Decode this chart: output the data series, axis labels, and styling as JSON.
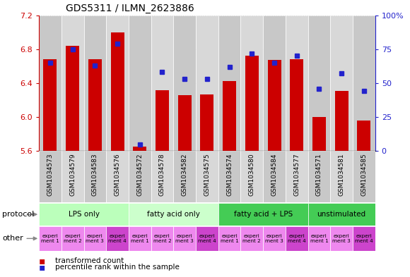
{
  "title": "GDS5311 / ILMN_2623886",
  "samples": [
    "GSM1034573",
    "GSM1034579",
    "GSM1034583",
    "GSM1034576",
    "GSM1034572",
    "GSM1034578",
    "GSM1034582",
    "GSM1034575",
    "GSM1034574",
    "GSM1034580",
    "GSM1034584",
    "GSM1034577",
    "GSM1034571",
    "GSM1034581",
    "GSM1034585"
  ],
  "transformed_counts": [
    6.68,
    6.84,
    6.68,
    7.0,
    5.65,
    6.32,
    6.26,
    6.27,
    6.42,
    6.72,
    6.67,
    6.68,
    6.0,
    6.31,
    5.96
  ],
  "percentile_ranks": [
    65,
    75,
    63,
    79,
    5,
    58,
    53,
    53,
    62,
    72,
    65,
    70,
    46,
    57,
    44
  ],
  "ylim_left": [
    5.6,
    7.2
  ],
  "ylim_right": [
    0,
    100
  ],
  "yticks_left": [
    5.6,
    6.0,
    6.4,
    6.8,
    7.2
  ],
  "yticks_right": [
    0,
    25,
    50,
    75,
    100
  ],
  "protocol_groups": [
    {
      "label": "LPS only",
      "start": 0,
      "end": 4,
      "color": "#bbffbb"
    },
    {
      "label": "fatty acid only",
      "start": 4,
      "end": 8,
      "color": "#ccffcc"
    },
    {
      "label": "fatty acid + LPS",
      "start": 8,
      "end": 12,
      "color": "#44cc55"
    },
    {
      "label": "unstimulated",
      "start": 12,
      "end": 15,
      "color": "#44cc55"
    }
  ],
  "exp_labels": [
    "experi\nment 1",
    "experi\nment 2",
    "experi\nment 3",
    "experi\nment 4",
    "experi\nment 1",
    "experi\nment 2",
    "experi\nment 3",
    "experi\nment 4",
    "experi\nment 1",
    "experi\nment 2",
    "experi\nment 3",
    "experi\nment 4",
    "experi\nment 1",
    "experi\nment 3",
    "experi\nment 4"
  ],
  "exp_is_4": [
    false,
    false,
    false,
    true,
    false,
    false,
    false,
    true,
    false,
    false,
    false,
    true,
    false,
    false,
    true
  ],
  "exp_color_normal": "#ee88ee",
  "exp_color_4": "#cc44cc",
  "bar_color": "#cc0000",
  "dot_color": "#2222cc",
  "plot_bg": "#d8d8d8",
  "bar_width": 0.6,
  "title_fontsize": 10,
  "left_label_color": "#cc0000",
  "right_label_color": "#2222cc"
}
